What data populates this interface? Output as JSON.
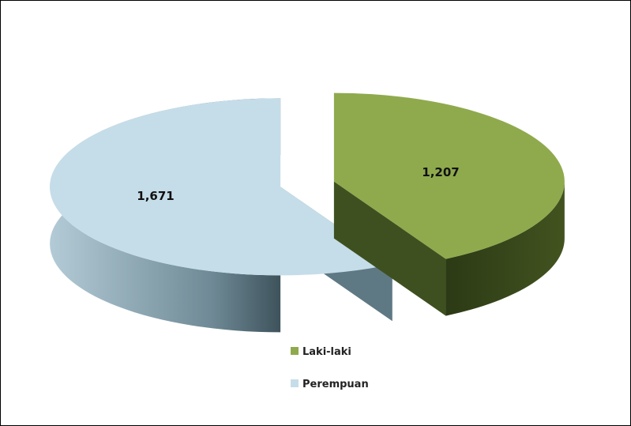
{
  "chart_data": {
    "type": "pie",
    "style": "3d-exploded",
    "categories": [
      "Laki-laki",
      "Perempuan"
    ],
    "values": [
      1207,
      1671
    ],
    "data_labels": [
      "1,207",
      "1,671"
    ],
    "colors": {
      "Laki-laki": {
        "top": "#8faa4d",
        "side": "#3f5020"
      },
      "Perempuan": {
        "top": "#c5dde8",
        "side": "#6f8a96"
      }
    },
    "legend": {
      "placement": "bottom-center",
      "entries": [
        "Laki-laki",
        "Perempuan"
      ]
    },
    "title": "",
    "xlabel": "",
    "ylabel": ""
  }
}
